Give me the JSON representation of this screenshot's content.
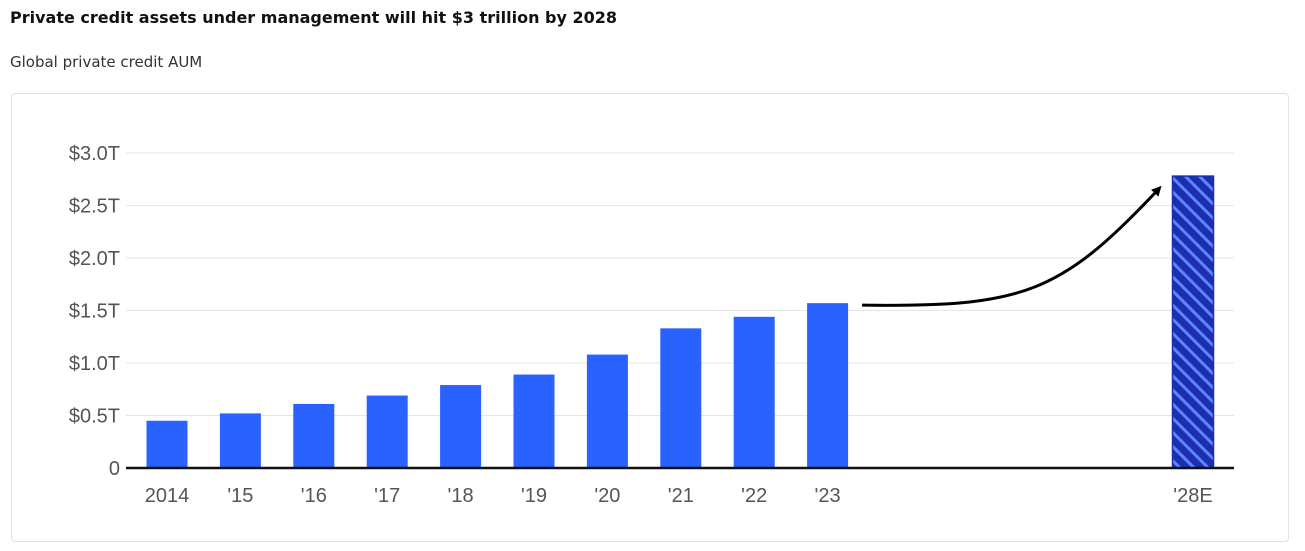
{
  "title": "Private credit assets under management will hit $3 trillion by 2028",
  "subtitle": "Global private credit AUM",
  "colors": {
    "bar": "#2962ff",
    "projection_bar": "#1b2fb0",
    "hatch": "#5c85ff",
    "axis": "#111111",
    "grid": "#e5e5e5",
    "text": "#555555"
  },
  "chart_data": {
    "type": "bar",
    "categories": [
      "2014",
      "'15",
      "'16",
      "'17",
      "'18",
      "'19",
      "'20",
      "'21",
      "'22",
      "'23",
      "'28E"
    ],
    "values": [
      0.45,
      0.52,
      0.61,
      0.69,
      0.79,
      0.89,
      1.08,
      1.33,
      1.44,
      1.57,
      2.78
    ],
    "projected": [
      false,
      false,
      false,
      false,
      false,
      false,
      false,
      false,
      false,
      false,
      true
    ],
    "y_tick_values": [
      0,
      0.5,
      1.0,
      1.5,
      2.0,
      2.5,
      3.0
    ],
    "y_tick_labels": [
      "0",
      "$0.5T",
      "$1.0T",
      "$1.5T",
      "$2.0T",
      "$2.5T",
      "$3.0T"
    ],
    "ylim": [
      0,
      3.0
    ],
    "xlabel": "",
    "ylabel": "",
    "annotation": "arrow from '23 bar to '28E bar",
    "grid": true
  }
}
